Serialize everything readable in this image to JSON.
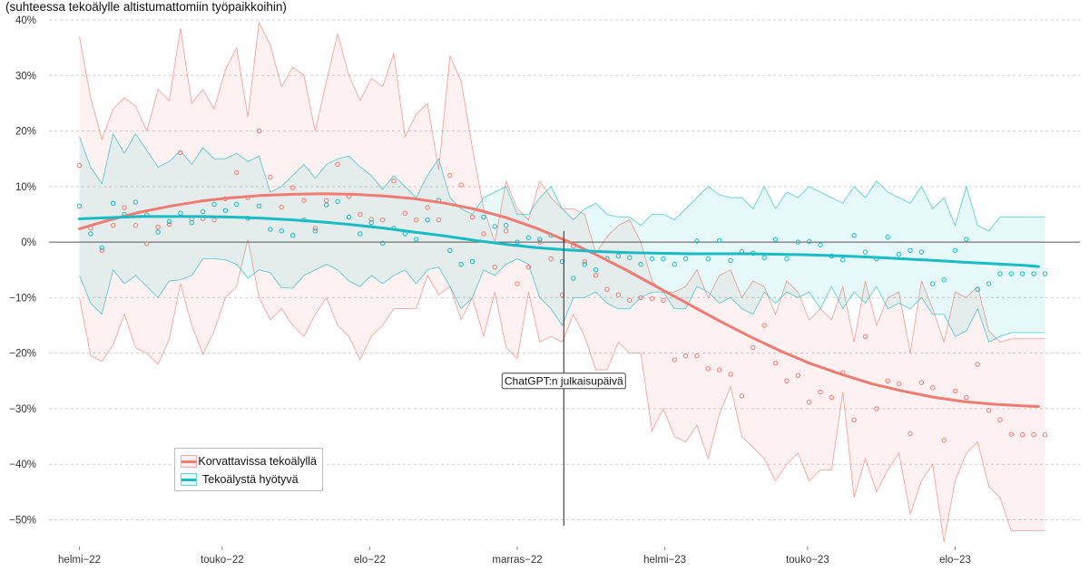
{
  "chart_data": {
    "type": "line",
    "subtitle": "(suhteessa tekoälylle altistumattomiin työpaikkoihin)",
    "xlabel": "",
    "ylabel": "",
    "ylim": [
      -0.54,
      0.4
    ],
    "y_ticks": [
      {
        "value": 0.4,
        "label": "40%"
      },
      {
        "value": 0.3,
        "label": "30%"
      },
      {
        "value": 0.2,
        "label": "20%"
      },
      {
        "value": 0.1,
        "label": "10%"
      },
      {
        "value": 0.0,
        "label": "0%"
      },
      {
        "value": -0.1,
        "label": "−10%"
      },
      {
        "value": -0.2,
        "label": "−20%"
      },
      {
        "value": -0.3,
        "label": "−30%"
      },
      {
        "value": -0.4,
        "label": "−40%"
      },
      {
        "value": -0.5,
        "label": "−50%"
      }
    ],
    "x_ticks": [
      {
        "date": "2022-02-01",
        "label": "helmi−22"
      },
      {
        "date": "2022-05-01",
        "label": "touko−22"
      },
      {
        "date": "2022-08-01",
        "label": "elo−22"
      },
      {
        "date": "2022-11-01",
        "label": "marras−22"
      },
      {
        "date": "2023-02-01",
        "label": "helmi−23"
      },
      {
        "date": "2023-05-01",
        "label": "touko−23"
      },
      {
        "date": "2023-08-01",
        "label": "elo−23"
      }
    ],
    "xlim": [
      "2022-01-30",
      "2023-09-28"
    ],
    "grid": true,
    "legend_position": "bottom-left",
    "annotation": {
      "date": "2022-11-30",
      "text": "ChatGPT:n julkaisupäivä",
      "y": -0.25
    },
    "series": [
      {
        "name": "Korvattavissa tekoälyllä",
        "color": "#f07b72",
        "dates": [
          "2022-02-01",
          "2022-02-08",
          "2022-02-15",
          "2022-02-22",
          "2022-03-01",
          "2022-03-08",
          "2022-03-15",
          "2022-03-22",
          "2022-03-29",
          "2022-04-05",
          "2022-04-12",
          "2022-04-19",
          "2022-04-26",
          "2022-05-03",
          "2022-05-10",
          "2022-05-17",
          "2022-05-24",
          "2022-05-31",
          "2022-06-07",
          "2022-06-14",
          "2022-06-21",
          "2022-06-28",
          "2022-07-05",
          "2022-07-12",
          "2022-07-19",
          "2022-07-26",
          "2022-08-02",
          "2022-08-09",
          "2022-08-16",
          "2022-08-23",
          "2022-08-30",
          "2022-09-06",
          "2022-09-13",
          "2022-09-20",
          "2022-09-27",
          "2022-10-04",
          "2022-10-11",
          "2022-10-18",
          "2022-10-25",
          "2022-11-01",
          "2022-11-08",
          "2022-11-15",
          "2022-11-22",
          "2022-11-29",
          "2022-12-06",
          "2022-12-13",
          "2022-12-20",
          "2022-12-27",
          "2023-01-03",
          "2023-01-10",
          "2023-01-17",
          "2023-01-24",
          "2023-01-31",
          "2023-02-07",
          "2023-02-14",
          "2023-02-21",
          "2023-02-28",
          "2023-03-07",
          "2023-03-14",
          "2023-03-21",
          "2023-03-28",
          "2023-04-04",
          "2023-04-11",
          "2023-04-18",
          "2023-04-25",
          "2023-05-02",
          "2023-05-09",
          "2023-05-16",
          "2023-05-23",
          "2023-05-30",
          "2023-06-06",
          "2023-06-13",
          "2023-06-20",
          "2023-06-27",
          "2023-07-04",
          "2023-07-11",
          "2023-07-18",
          "2023-07-25",
          "2023-08-01",
          "2023-08-08",
          "2023-08-15",
          "2023-08-22",
          "2023-08-29",
          "2023-09-05",
          "2023-09-12",
          "2023-09-19",
          "2023-09-26"
        ],
        "points": [
          0.138,
          0.025,
          -0.015,
          0.03,
          0.062,
          0.03,
          -0.003,
          0.027,
          0.032,
          0.161,
          0.042,
          0.042,
          0.04,
          0.078,
          0.125,
          0.08,
          0.2,
          0.117,
          0.063,
          0.098,
          0.075,
          0.025,
          0.075,
          0.14,
          0.082,
          0.05,
          0.041,
          0.04,
          0.11,
          0.052,
          0.04,
          0.062,
          0.04,
          0.12,
          0.103,
          0.045,
          0.015,
          -0.045,
          0.02,
          -0.075,
          -0.045,
          0.0,
          -0.03,
          -0.095,
          -0.007,
          -0.035,
          -0.06,
          -0.085,
          -0.095,
          -0.105,
          -0.1,
          -0.102,
          -0.105,
          -0.212,
          -0.205,
          -0.205,
          -0.228,
          -0.23,
          -0.238,
          -0.277,
          -0.19,
          -0.15,
          -0.218,
          -0.25,
          -0.24,
          -0.288,
          -0.27,
          -0.28,
          -0.235,
          -0.32,
          -0.17,
          -0.3,
          -0.25,
          -0.255,
          -0.345,
          -0.253,
          -0.262,
          -0.357,
          -0.268,
          -0.28,
          -0.22,
          -0.303,
          -0.32,
          -0.346,
          -0.347,
          -0.347,
          -0.347
        ],
        "lower": [
          -0.1,
          -0.205,
          -0.215,
          -0.185,
          -0.13,
          -0.19,
          -0.2,
          -0.22,
          -0.175,
          -0.075,
          -0.15,
          -0.202,
          -0.16,
          -0.1,
          -0.08,
          0.005,
          -0.1,
          -0.14,
          -0.12,
          -0.15,
          -0.17,
          -0.13,
          -0.1,
          -0.15,
          -0.17,
          -0.212,
          -0.17,
          -0.15,
          -0.12,
          -0.12,
          -0.12,
          -0.06,
          -0.095,
          -0.08,
          -0.14,
          -0.1,
          -0.17,
          -0.09,
          -0.19,
          -0.21,
          -0.09,
          -0.18,
          -0.17,
          -0.18,
          -0.13,
          -0.17,
          -0.23,
          -0.23,
          -0.18,
          -0.2,
          -0.2,
          -0.34,
          -0.3,
          -0.35,
          -0.36,
          -0.33,
          -0.39,
          -0.31,
          -0.26,
          -0.35,
          -0.37,
          -0.39,
          -0.43,
          -0.4,
          -0.38,
          -0.43,
          -0.41,
          -0.41,
          -0.27,
          -0.46,
          -0.39,
          -0.45,
          -0.41,
          -0.38,
          -0.49,
          -0.43,
          -0.4,
          -0.54,
          -0.43,
          -0.38,
          -0.36,
          -0.44,
          -0.46,
          -0.52,
          -0.52,
          -0.52,
          -0.52
        ],
        "upper": [
          0.37,
          0.26,
          0.185,
          0.24,
          0.26,
          0.245,
          0.2,
          0.275,
          0.255,
          0.385,
          0.25,
          0.275,
          0.24,
          0.31,
          0.35,
          0.225,
          0.395,
          0.355,
          0.28,
          0.315,
          0.3,
          0.2,
          0.29,
          0.375,
          0.3,
          0.255,
          0.295,
          0.28,
          0.34,
          0.19,
          0.23,
          0.25,
          0.13,
          0.335,
          0.29,
          0.17,
          0.06,
          0.0,
          0.11,
          0.06,
          0.04,
          0.11,
          0.08,
          0.06,
          0.06,
          0.05,
          -0.02,
          0.01,
          0.03,
          0.04,
          0.0,
          -0.07,
          -0.09,
          -0.09,
          -0.08,
          -0.05,
          -0.1,
          -0.06,
          -0.05,
          -0.1,
          -0.07,
          -0.08,
          -0.13,
          -0.07,
          -0.09,
          -0.14,
          -0.12,
          -0.14,
          -0.08,
          -0.18,
          -0.07,
          -0.15,
          -0.1,
          -0.09,
          -0.2,
          -0.07,
          -0.12,
          -0.18,
          -0.09,
          -0.1,
          -0.08,
          -0.16,
          -0.18,
          -0.174,
          -0.174,
          -0.174,
          -0.174
        ],
        "trend": [
          0.024,
          0.04,
          0.054,
          0.065,
          0.074,
          0.08,
          0.084,
          0.086,
          0.087,
          0.086,
          0.083,
          0.078,
          0.07,
          0.059,
          0.044,
          0.025,
          0.002,
          -0.024,
          -0.052,
          -0.082,
          -0.112,
          -0.142,
          -0.17,
          -0.196,
          -0.219,
          -0.238,
          -0.255,
          -0.268,
          -0.279,
          -0.287,
          -0.292,
          -0.295,
          -0.296
        ],
        "trend_dates": [
          "2022-02-01",
          "2022-02-20",
          "2022-03-11",
          "2022-03-30",
          "2022-04-18",
          "2022-05-07",
          "2022-05-26",
          "2022-06-14",
          "2022-07-03",
          "2022-07-22",
          "2022-08-10",
          "2022-08-29",
          "2022-09-17",
          "2022-10-06",
          "2022-10-25",
          "2022-11-13",
          "2022-12-02",
          "2022-12-21",
          "2023-01-09",
          "2023-01-28",
          "2023-02-16",
          "2023-03-07",
          "2023-03-26",
          "2023-04-14",
          "2023-05-03",
          "2023-05-22",
          "2023-06-10",
          "2023-06-29",
          "2023-07-18",
          "2023-08-06",
          "2023-08-25",
          "2023-09-13",
          "2023-09-22"
        ]
      },
      {
        "name": "Tekoälystä hyötyvä",
        "color": "#17bcc4",
        "dates": [
          "2022-02-01",
          "2022-02-08",
          "2022-02-15",
          "2022-02-22",
          "2022-03-01",
          "2022-03-08",
          "2022-03-15",
          "2022-03-22",
          "2022-03-29",
          "2022-04-05",
          "2022-04-12",
          "2022-04-19",
          "2022-04-26",
          "2022-05-03",
          "2022-05-10",
          "2022-05-17",
          "2022-05-24",
          "2022-05-31",
          "2022-06-07",
          "2022-06-14",
          "2022-06-21",
          "2022-06-28",
          "2022-07-05",
          "2022-07-12",
          "2022-07-19",
          "2022-07-26",
          "2022-08-02",
          "2022-08-09",
          "2022-08-16",
          "2022-08-23",
          "2022-08-30",
          "2022-09-06",
          "2022-09-13",
          "2022-09-20",
          "2022-09-27",
          "2022-10-04",
          "2022-10-11",
          "2022-10-18",
          "2022-10-25",
          "2022-11-01",
          "2022-11-08",
          "2022-11-15",
          "2022-11-22",
          "2022-11-29",
          "2022-12-06",
          "2022-12-13",
          "2022-12-20",
          "2022-12-27",
          "2023-01-03",
          "2023-01-10",
          "2023-01-17",
          "2023-01-24",
          "2023-01-31",
          "2023-02-07",
          "2023-02-14",
          "2023-02-21",
          "2023-02-28",
          "2023-03-07",
          "2023-03-14",
          "2023-03-21",
          "2023-03-28",
          "2023-04-04",
          "2023-04-11",
          "2023-04-18",
          "2023-04-25",
          "2023-05-02",
          "2023-05-09",
          "2023-05-16",
          "2023-05-23",
          "2023-05-30",
          "2023-06-06",
          "2023-06-13",
          "2023-06-20",
          "2023-06-27",
          "2023-07-04",
          "2023-07-11",
          "2023-07-18",
          "2023-07-25",
          "2023-08-01",
          "2023-08-08",
          "2023-08-15",
          "2023-08-22",
          "2023-08-29",
          "2023-09-05",
          "2023-09-12",
          "2023-09-19",
          "2023-09-26"
        ],
        "points": [
          0.065,
          0.015,
          -0.01,
          0.07,
          0.05,
          0.072,
          0.049,
          0.018,
          0.037,
          0.052,
          0.035,
          0.055,
          0.068,
          0.057,
          0.068,
          0.043,
          0.065,
          0.023,
          0.02,
          0.012,
          0.04,
          0.02,
          0.067,
          0.073,
          0.045,
          0.015,
          0.035,
          -0.002,
          0.025,
          0.015,
          0.005,
          0.04,
          0.075,
          -0.015,
          -0.04,
          -0.035,
          0.045,
          0.028,
          0.03,
          0.0,
          0.008,
          0.005,
          0.012,
          -0.035,
          -0.065,
          -0.04,
          -0.05,
          -0.03,
          -0.025,
          -0.028,
          -0.04,
          -0.03,
          -0.03,
          -0.04,
          -0.03,
          0.002,
          -0.03,
          0.003,
          -0.033,
          -0.017,
          -0.02,
          -0.028,
          0.005,
          -0.03,
          0.0,
          0.001,
          -0.005,
          -0.025,
          -0.032,
          0.012,
          -0.018,
          -0.03,
          0.009,
          -0.022,
          -0.015,
          -0.018,
          -0.075,
          -0.068,
          -0.015,
          0.005,
          -0.085,
          -0.075,
          -0.057,
          -0.057,
          -0.057,
          -0.057,
          -0.057
        ],
        "lower": [
          -0.06,
          -0.11,
          -0.13,
          -0.05,
          -0.075,
          -0.06,
          -0.08,
          -0.1,
          -0.07,
          -0.068,
          -0.06,
          -0.03,
          -0.03,
          -0.032,
          -0.04,
          -0.065,
          -0.05,
          -0.055,
          -0.082,
          -0.083,
          -0.06,
          -0.05,
          -0.04,
          -0.05,
          -0.07,
          -0.08,
          -0.06,
          -0.075,
          -0.06,
          -0.05,
          -0.075,
          -0.05,
          -0.045,
          -0.08,
          -0.12,
          -0.1,
          -0.05,
          -0.06,
          -0.04,
          -0.03,
          -0.04,
          -0.1,
          -0.12,
          -0.15,
          -0.1,
          -0.1,
          -0.09,
          -0.11,
          -0.12,
          -0.12,
          -0.1,
          -0.09,
          -0.09,
          -0.12,
          -0.12,
          -0.08,
          -0.09,
          -0.11,
          -0.1,
          -0.12,
          -0.13,
          -0.09,
          -0.11,
          -0.09,
          -0.1,
          -0.09,
          -0.12,
          -0.08,
          -0.12,
          -0.09,
          -0.11,
          -0.08,
          -0.12,
          -0.11,
          -0.12,
          -0.1,
          -0.13,
          -0.13,
          -0.17,
          -0.16,
          -0.12,
          -0.18,
          -0.17,
          -0.163,
          -0.163,
          -0.163,
          -0.163
        ],
        "upper": [
          0.19,
          0.135,
          0.105,
          0.195,
          0.16,
          0.195,
          0.165,
          0.135,
          0.145,
          0.165,
          0.14,
          0.17,
          0.15,
          0.15,
          0.16,
          0.145,
          0.155,
          0.09,
          0.1,
          0.12,
          0.14,
          0.115,
          0.14,
          0.15,
          0.155,
          0.135,
          0.12,
          0.095,
          0.12,
          0.1,
          0.08,
          0.12,
          0.15,
          0.08,
          0.06,
          0.05,
          0.08,
          0.09,
          0.1,
          0.05,
          0.05,
          0.08,
          0.1,
          0.06,
          0.04,
          0.06,
          0.07,
          0.05,
          0.045,
          0.045,
          0.03,
          0.05,
          0.05,
          0.04,
          0.06,
          0.08,
          0.1,
          0.085,
          0.08,
          0.08,
          0.06,
          0.1,
          0.06,
          0.09,
          0.08,
          0.1,
          0.09,
          0.08,
          0.07,
          0.1,
          0.08,
          0.11,
          0.09,
          0.08,
          0.07,
          0.1,
          0.06,
          0.08,
          0.03,
          0.1,
          0.03,
          0.02,
          0.045,
          0.045,
          0.045,
          0.045,
          0.045
        ],
        "trend": [
          0.042,
          0.044,
          0.046,
          0.046,
          0.046,
          0.045,
          0.043,
          0.04,
          0.036,
          0.031,
          0.025,
          0.018,
          0.011,
          0.003,
          -0.004,
          -0.01,
          -0.014,
          -0.017,
          -0.019,
          -0.02,
          -0.021,
          -0.021,
          -0.021,
          -0.022,
          -0.023,
          -0.025,
          -0.027,
          -0.03,
          -0.033,
          -0.036,
          -0.039,
          -0.042,
          -0.044
        ],
        "trend_dates": [
          "2022-02-01",
          "2022-02-20",
          "2022-03-11",
          "2022-03-30",
          "2022-04-18",
          "2022-05-07",
          "2022-05-26",
          "2022-06-14",
          "2022-07-03",
          "2022-07-22",
          "2022-08-10",
          "2022-08-29",
          "2022-09-17",
          "2022-10-06",
          "2022-10-25",
          "2022-11-13",
          "2022-12-02",
          "2022-12-21",
          "2023-01-09",
          "2023-01-28",
          "2023-02-16",
          "2023-03-07",
          "2023-03-26",
          "2023-04-14",
          "2023-05-03",
          "2023-05-22",
          "2023-06-10",
          "2023-06-29",
          "2023-07-18",
          "2023-08-06",
          "2023-08-25",
          "2023-09-13",
          "2023-09-22"
        ]
      }
    ]
  }
}
